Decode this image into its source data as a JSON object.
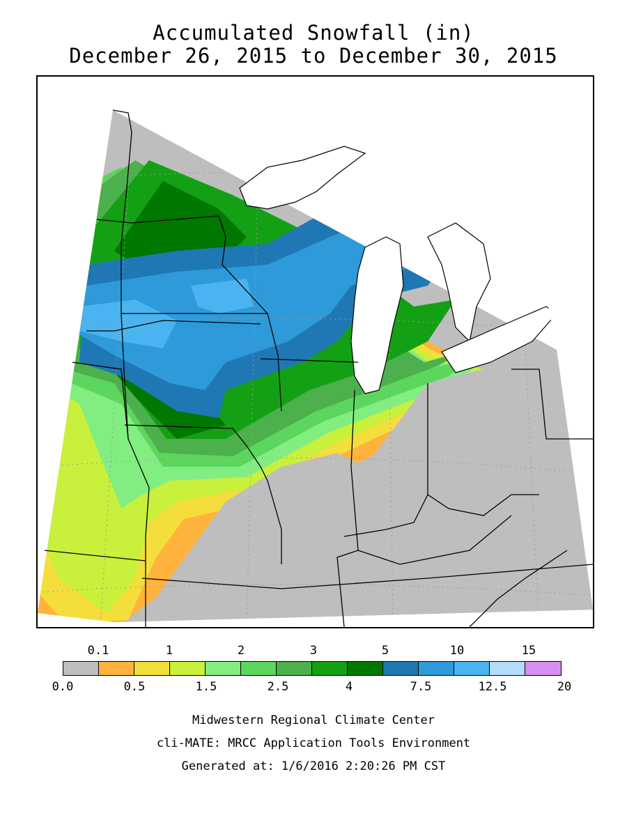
{
  "title": {
    "line1": "Accumulated Snowfall (in)",
    "line2": "December 26, 2015 to December 30, 2015"
  },
  "legend": {
    "top_labels": [
      "0.1",
      "1",
      "2",
      "3",
      "5",
      "10",
      "15"
    ],
    "bottom_labels": [
      "0.0",
      "0.5",
      "1.5",
      "2.5",
      "4",
      "7.5",
      "12.5",
      "20"
    ],
    "colors": [
      "#bebebe",
      "#ffb33c",
      "#f4de3c",
      "#c8f03c",
      "#82ee82",
      "#5cd65c",
      "#4cb04c",
      "#14a014",
      "#007800",
      "#1f78b4",
      "#2e9ada",
      "#4ab4f0",
      "#b4dcfa",
      "#d68ef0"
    ]
  },
  "footer": {
    "line1": "Midwestern Regional Climate Center",
    "line2": "cli-MATE: MRCC Application Tools Environment",
    "line3": "Generated at: 1/6/2016 2:20:26 PM CST"
  }
}
